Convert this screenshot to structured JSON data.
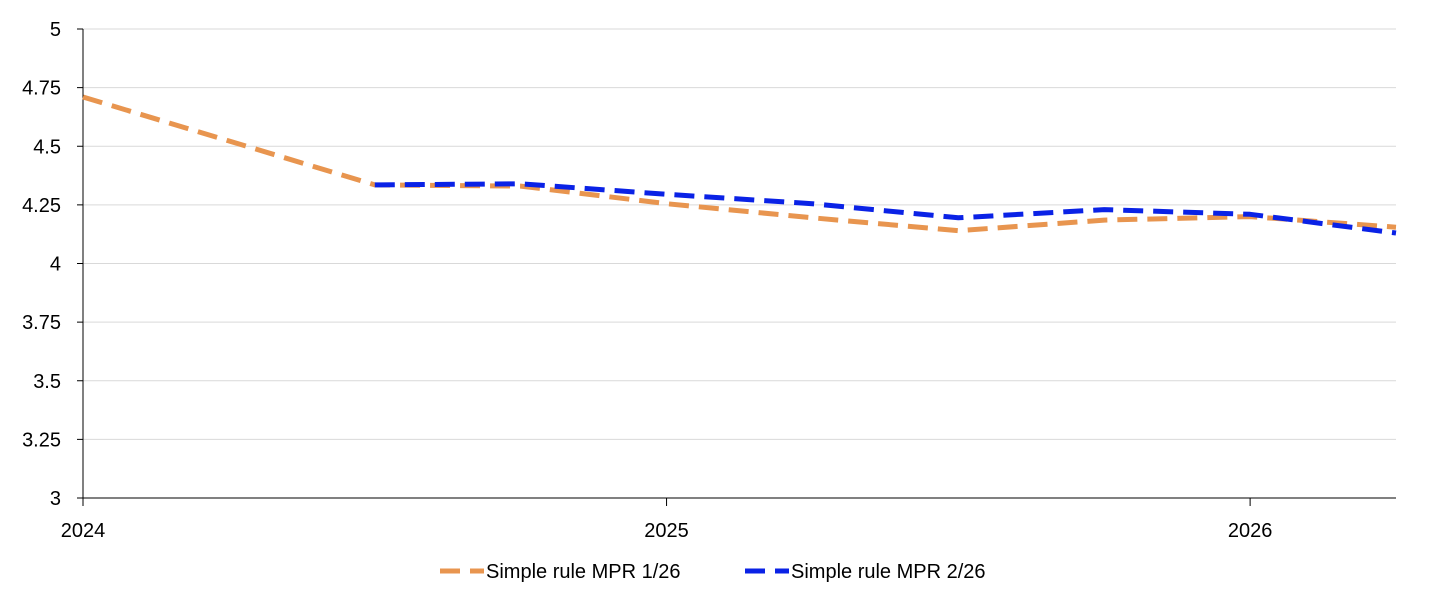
{
  "chart_data": {
    "type": "line",
    "title": "",
    "xlabel": "",
    "ylabel": "",
    "x_ticks": [
      "2024",
      "2025",
      "2026"
    ],
    "x_tick_positions": [
      2024.0,
      2025.0,
      2026.0
    ],
    "xlim": [
      2024.0,
      2026.25
    ],
    "ylim": [
      3,
      5
    ],
    "y_ticks": [
      "3",
      "3.25",
      "3.5",
      "3.75",
      "4",
      "4.25",
      "4.5",
      "4.75",
      "5"
    ],
    "y_tick_values": [
      3,
      3.25,
      3.5,
      3.75,
      4,
      4.25,
      4.5,
      4.75,
      5
    ],
    "grid": true,
    "legend_position": "bottom",
    "series": [
      {
        "name": "Simple rule MPR 1/26",
        "color": "#E8954F",
        "dash": "dashed",
        "x": [
          2024.0,
          2024.5,
          2024.75,
          2025.0,
          2025.25,
          2025.5,
          2025.75,
          2026.0,
          2026.25
        ],
        "y": [
          4.71,
          4.335,
          4.33,
          4.255,
          4.195,
          4.14,
          4.185,
          4.2,
          4.155
        ]
      },
      {
        "name": "Simple rule MPR 2/26",
        "color": "#0A22E6",
        "dash": "dashed",
        "x": [
          2024.5,
          2024.75,
          2025.0,
          2025.25,
          2025.5,
          2025.75,
          2026.0,
          2026.25
        ],
        "y": [
          4.335,
          4.34,
          4.295,
          4.255,
          4.195,
          4.23,
          4.21,
          4.13
        ]
      }
    ]
  }
}
